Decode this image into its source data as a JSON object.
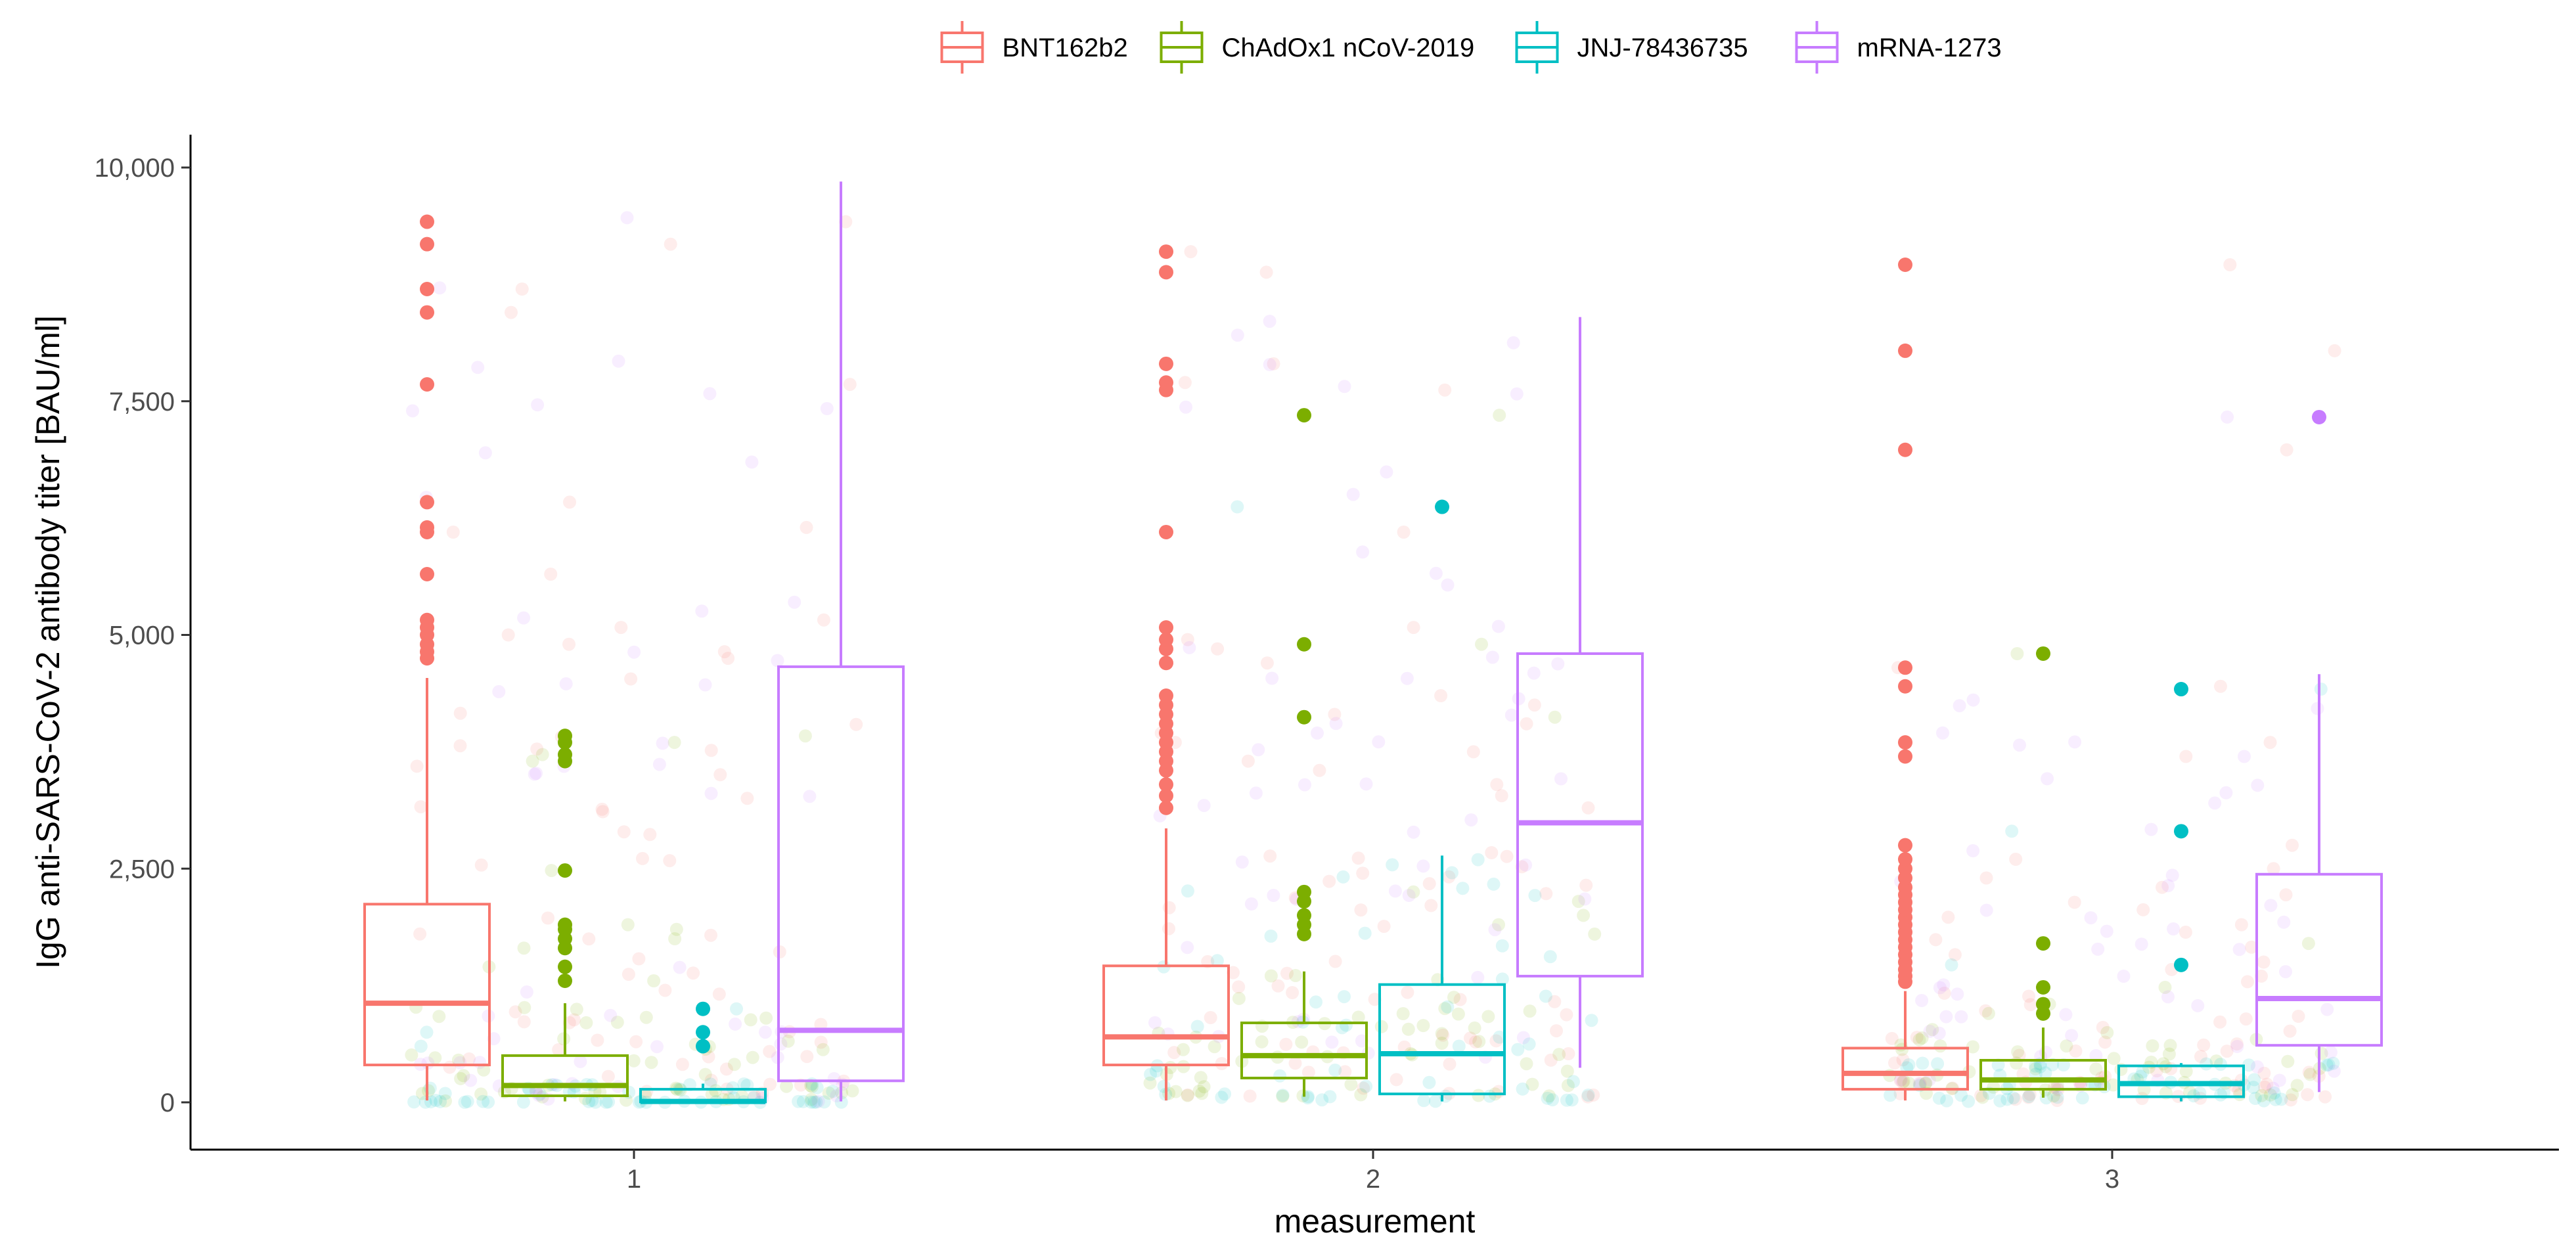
{
  "chart_data": {
    "type": "boxplot",
    "title": "",
    "xlabel": "measurement",
    "ylabel": "IgG anti-SARS-CoV-2 antibody titer [BAU/ml]",
    "ylim": [
      -400,
      10350
    ],
    "y_ticks": [
      0,
      2500,
      5000,
      7500,
      10000
    ],
    "y_tick_labels": [
      "0",
      "2,500",
      "5,000",
      "7,500",
      "10,000"
    ],
    "categories": [
      "1",
      "2",
      "3"
    ],
    "legend_position": "top",
    "grid": false,
    "series": [
      {
        "name": "BNT162b2",
        "color": "#F8766D",
        "boxes": [
          {
            "q1": 400,
            "median": 1060,
            "q3": 2120,
            "whisker_low": 20,
            "whisker_high": 4540,
            "outliers": [
              4750,
              4820,
              4900,
              5000,
              5080,
              5160,
              5650,
              6100,
              6150,
              6420,
              7680,
              8450,
              8700,
              9180,
              9420
            ]
          },
          {
            "q1": 400,
            "median": 700,
            "q3": 1460,
            "whisker_low": 20,
            "whisker_high": 2930,
            "outliers": [
              3150,
              3280,
              3400,
              3550,
              3650,
              3750,
              3850,
              3950,
              4050,
              4150,
              4250,
              4350,
              4700,
              4850,
              4950,
              5080,
              6100,
              7620,
              7700,
              7900,
              8880,
              9100
            ]
          },
          {
            "q1": 140,
            "median": 310,
            "q3": 580,
            "whisker_low": 20,
            "whisker_high": 1190,
            "outliers": [
              1290,
              1350,
              1420,
              1500,
              1580,
              1660,
              1740,
              1820,
              1900,
              1980,
              2060,
              2140,
              2220,
              2300,
              2400,
              2500,
              2600,
              2750,
              3700,
              3850,
              4450,
              4650,
              6980,
              8040,
              8960
            ]
          }
        ]
      },
      {
        "name": "ChAdOx1 nCoV-2019",
        "color": "#7CAE00",
        "boxes": [
          {
            "q1": 70,
            "median": 180,
            "q3": 500,
            "whisker_low": 10,
            "whisker_high": 1060,
            "outliers": [
              1300,
              1450,
              1650,
              1750,
              1850,
              1900,
              2480,
              3650,
              3720,
              3850,
              3920
            ]
          },
          {
            "q1": 260,
            "median": 500,
            "q3": 850,
            "whisker_low": 60,
            "whisker_high": 1400,
            "outliers": [
              1800,
              1900,
              2000,
              2150,
              2250,
              4120,
              4900,
              7350
            ]
          },
          {
            "q1": 140,
            "median": 240,
            "q3": 450,
            "whisker_low": 50,
            "whisker_high": 800,
            "outliers": [
              950,
              1050,
              1230,
              1700,
              4800
            ]
          }
        ]
      },
      {
        "name": "JNJ-78436735",
        "color": "#00BFC4",
        "boxes": [
          {
            "q1": 5,
            "median": 10,
            "q3": 140,
            "whisker_low": 0,
            "whisker_high": 200,
            "outliers": [
              600,
              750,
              1000
            ]
          },
          {
            "q1": 90,
            "median": 520,
            "q3": 1260,
            "whisker_low": 10,
            "whisker_high": 2640,
            "outliers": [
              6370
            ]
          },
          {
            "q1": 60,
            "median": 200,
            "q3": 390,
            "whisker_low": 10,
            "whisker_high": 420,
            "outliers": [
              1470,
              2900,
              4420
            ]
          }
        ]
      },
      {
        "name": "mRNA-1273",
        "color": "#C77CFF",
        "boxes": [
          {
            "q1": 230,
            "median": 770,
            "q3": 4660,
            "whisker_low": 10,
            "whisker_high": 9850,
            "outliers": []
          },
          {
            "q1": 1350,
            "median": 2990,
            "q3": 4800,
            "whisker_low": 370,
            "whisker_high": 8400,
            "outliers": []
          },
          {
            "q1": 610,
            "median": 1110,
            "q3": 2440,
            "whisker_low": 110,
            "whisker_high": 4580,
            "outliers": [
              7330
            ]
          }
        ]
      }
    ]
  }
}
